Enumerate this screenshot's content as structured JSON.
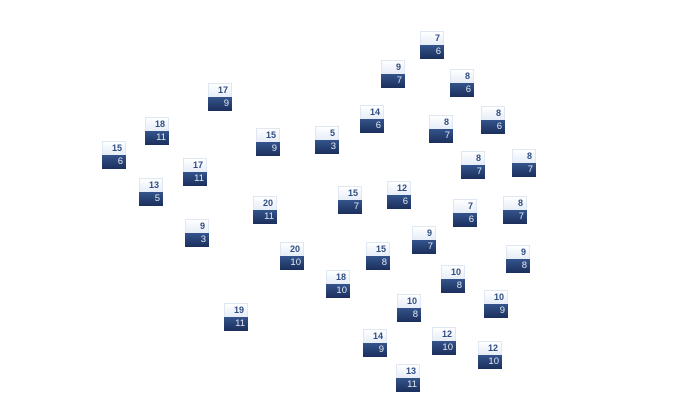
{
  "colors": {
    "card_top": "#eef3fb",
    "card_bottom": "#243d6e",
    "top_text": "#2f4d80",
    "bottom_text": "#e3e9f4"
  },
  "nodes": [
    {
      "top": "7",
      "bottom": "6"
    },
    {
      "top": "9",
      "bottom": "7"
    },
    {
      "top": "8",
      "bottom": "6"
    },
    {
      "top": "14",
      "bottom": "6"
    },
    {
      "top": "8",
      "bottom": "7"
    },
    {
      "top": "8",
      "bottom": "6"
    },
    {
      "top": "5",
      "bottom": "3"
    },
    {
      "top": "8",
      "bottom": "7"
    },
    {
      "top": "8",
      "bottom": "7"
    },
    {
      "top": "15",
      "bottom": "7"
    },
    {
      "top": "12",
      "bottom": "6"
    },
    {
      "top": "7",
      "bottom": "6"
    },
    {
      "top": "8",
      "bottom": "7"
    },
    {
      "top": "17",
      "bottom": "9"
    },
    {
      "top": "18",
      "bottom": "11"
    },
    {
      "top": "15",
      "bottom": "6"
    },
    {
      "top": "15",
      "bottom": "9"
    },
    {
      "top": "17",
      "bottom": "11"
    },
    {
      "top": "13",
      "bottom": "5"
    },
    {
      "top": "20",
      "bottom": "11"
    },
    {
      "top": "9",
      "bottom": "3"
    },
    {
      "top": "20",
      "bottom": "10"
    },
    {
      "top": "9",
      "bottom": "7"
    },
    {
      "top": "15",
      "bottom": "8"
    },
    {
      "top": "18",
      "bottom": "10"
    },
    {
      "top": "10",
      "bottom": "8"
    },
    {
      "top": "9",
      "bottom": "8"
    },
    {
      "top": "10",
      "bottom": "9"
    },
    {
      "top": "10",
      "bottom": "8"
    },
    {
      "top": "19",
      "bottom": "11"
    },
    {
      "top": "14",
      "bottom": "9"
    },
    {
      "top": "12",
      "bottom": "10"
    },
    {
      "top": "12",
      "bottom": "10"
    },
    {
      "top": "13",
      "bottom": "11"
    }
  ]
}
